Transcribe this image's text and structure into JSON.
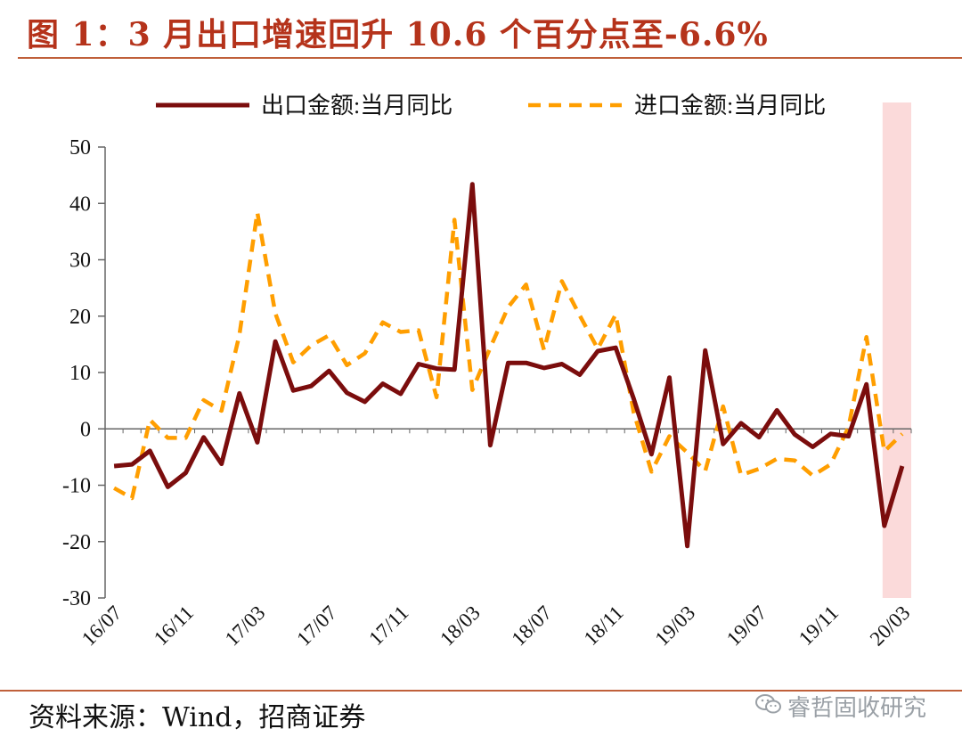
{
  "title": "图 1：3 月出口增速回升 10.6 个百分点至-6.6%",
  "source": "资料来源：Wind，招商证券",
  "watermark": "睿哲固收研究",
  "colors": {
    "title": "#b5331b",
    "rule": "#c0603a",
    "export_line": "#7b0d0d",
    "import_line": "#ff9e00",
    "highlight": "#fbdada"
  },
  "chart_data": {
    "type": "line",
    "ylim": [
      -30,
      50
    ],
    "yticks": [
      -30,
      -20,
      -10,
      0,
      10,
      20,
      30,
      40,
      50
    ],
    "xtick_labels": [
      "16/07",
      "16/11",
      "17/03",
      "17/07",
      "17/11",
      "18/03",
      "18/07",
      "18/11",
      "19/03",
      "19/07",
      "19/11",
      "20/03"
    ],
    "xtick_every": 4,
    "legend_position": "top",
    "highlight_last_points": 2,
    "series": [
      {
        "name": "出口金额:当月同比",
        "style": "solid",
        "color": "#7b0d0d",
        "values": [
          -6.6,
          -6.3,
          -3.9,
          -10.3,
          -7.8,
          -1.5,
          -6.2,
          6.3,
          -2.4,
          15.5,
          6.8,
          7.6,
          10.3,
          6.4,
          4.8,
          8.0,
          6.2,
          11.5,
          10.7,
          10.5,
          43.4,
          -2.9,
          11.7,
          11.7,
          10.8,
          11.5,
          9.6,
          13.8,
          14.4,
          5.4,
          -4.5,
          9.1,
          -20.8,
          13.9,
          -2.7,
          1.0,
          -1.5,
          3.3,
          -1.0,
          -3.2,
          -0.9,
          -1.3,
          7.9,
          -17.2,
          -6.6
        ]
      },
      {
        "name": "进口金额:当月同比",
        "style": "dashed",
        "color": "#ff9e00",
        "values": [
          -10.5,
          -12.3,
          1.6,
          -1.6,
          -1.6,
          5.1,
          3.2,
          16.7,
          38.4,
          20.5,
          11.8,
          14.8,
          16.6,
          11.3,
          13.4,
          18.9,
          17.2,
          17.5,
          5.6,
          37.1,
          6.9,
          14.4,
          21.6,
          25.6,
          14.0,
          26.2,
          20.1,
          14.2,
          20.3,
          3.0,
          -7.6,
          -1.3,
          -4.2,
          -7.5,
          4.0,
          -8.2,
          -7.1,
          -5.3,
          -5.6,
          -8.3,
          -6.3,
          0.3,
          16.3,
          -4.0,
          -0.9
        ]
      }
    ]
  }
}
